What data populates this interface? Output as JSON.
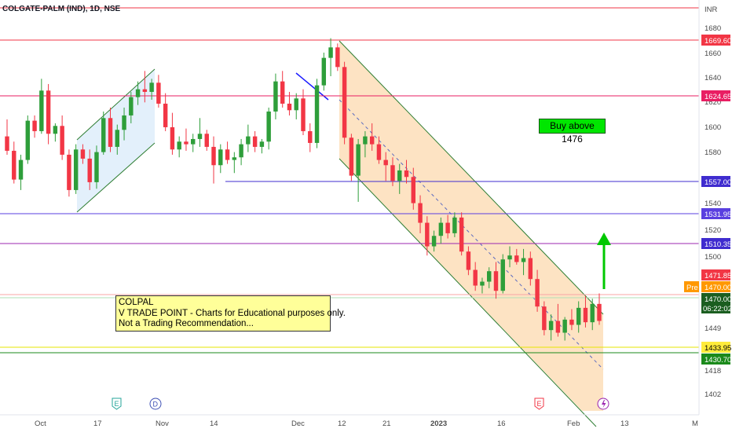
{
  "header": {
    "symbol_line": "COLGATE-PALM (IND), 1D, NSE",
    "currency": "INR"
  },
  "annotations": {
    "note_lines": [
      "COLPAL",
      "V TRADE POINT - Charts for Educational purposes only.",
      "Not a Trading Recommendation..."
    ],
    "buy_label": "Buy above 1476",
    "pre_tag": "Pre",
    "countdown": "06:22:02",
    "event_markers": [
      "E",
      "D",
      "E"
    ]
  },
  "colors": {
    "up": "#26a69a",
    "down": "#f23645",
    "up_candle": "#2e9e3a",
    "down_candle": "#f23645",
    "channel_fill": "#fde3c3",
    "ascending_channel_fill": "#e3f0fb",
    "buy_box": "#00e600"
  },
  "chart_data": {
    "type": "candlestick",
    "title": "COLGATE-PALM (IND), 1D, NSE",
    "currency": "INR",
    "x_axis_ticks": [
      "Oct",
      "17",
      "Nov",
      "14",
      "Dec",
      "12",
      "21",
      "2023",
      "16",
      "Feb",
      "13",
      "M"
    ],
    "y_axis_ticks": [
      1680,
      1660,
      1640,
      1620,
      1600,
      1580,
      1540,
      1520,
      1500,
      1449,
      1418,
      1402
    ],
    "ylim": [
      1396,
      1690
    ],
    "grid": false,
    "horizontal_levels": [
      {
        "label": "1669.60",
        "color": "#f23645"
      },
      {
        "label": "1624.65",
        "color": "#e91e63"
      },
      {
        "label": "1557.00",
        "color": "#3f2ccf"
      },
      {
        "label": "1531.95",
        "color": "#5a3fe0"
      },
      {
        "label": "1510.35",
        "color": "#3f2ccf"
      },
      {
        "label": "1471.85",
        "color": "#f23645"
      },
      {
        "label": "1470.00",
        "color": "#ff9800"
      },
      {
        "label": "1470.00",
        "color": "#1b5e20"
      },
      {
        "label": "1433.95",
        "color": "#ffeb3b"
      },
      {
        "label": "1430.70",
        "color": "#1b8a1b"
      }
    ],
    "candles": [
      [
        1596,
        1609,
        1582,
        1585
      ],
      [
        1585,
        1592,
        1560,
        1563
      ],
      [
        1563,
        1582,
        1555,
        1578
      ],
      [
        1578,
        1612,
        1575,
        1608
      ],
      [
        1608,
        1612,
        1595,
        1600
      ],
      [
        1600,
        1640,
        1598,
        1631
      ],
      [
        1631,
        1636,
        1590,
        1598
      ],
      [
        1598,
        1606,
        1592,
        1604
      ],
      [
        1604,
        1612,
        1578,
        1582
      ],
      [
        1582,
        1586,
        1550,
        1555
      ],
      [
        1555,
        1590,
        1552,
        1586
      ],
      [
        1586,
        1590,
        1575,
        1579
      ],
      [
        1579,
        1586,
        1555,
        1561
      ],
      [
        1561,
        1589,
        1556,
        1584
      ],
      [
        1584,
        1615,
        1582,
        1610
      ],
      [
        1610,
        1618,
        1584,
        1588
      ],
      [
        1588,
        1605,
        1582,
        1601
      ],
      [
        1601,
        1618,
        1593,
        1612
      ],
      [
        1612,
        1630,
        1606,
        1626
      ],
      [
        1626,
        1638,
        1620,
        1632
      ],
      [
        1632,
        1646,
        1622,
        1630
      ],
      [
        1630,
        1640,
        1624,
        1637
      ],
      [
        1637,
        1643,
        1618,
        1621
      ],
      [
        1621,
        1629,
        1600,
        1603
      ],
      [
        1603,
        1614,
        1582,
        1586
      ],
      [
        1586,
        1596,
        1580,
        1592
      ],
      [
        1592,
        1602,
        1585,
        1590
      ],
      [
        1590,
        1598,
        1584,
        1594
      ],
      [
        1594,
        1610,
        1588,
        1598
      ],
      [
        1598,
        1601,
        1585,
        1588
      ],
      [
        1588,
        1596,
        1560,
        1574
      ],
      [
        1574,
        1590,
        1568,
        1586
      ],
      [
        1586,
        1592,
        1575,
        1578
      ],
      [
        1578,
        1584,
        1568,
        1580
      ],
      [
        1580,
        1594,
        1574,
        1590
      ],
      [
        1590,
        1605,
        1584,
        1596
      ],
      [
        1596,
        1600,
        1584,
        1588
      ],
      [
        1588,
        1594,
        1583,
        1592
      ],
      [
        1592,
        1618,
        1586,
        1615
      ],
      [
        1615,
        1644,
        1609,
        1638
      ],
      [
        1638,
        1646,
        1618,
        1621
      ],
      [
        1621,
        1630,
        1612,
        1616
      ],
      [
        1616,
        1629,
        1609,
        1625
      ],
      [
        1625,
        1632,
        1597,
        1600
      ],
      [
        1600,
        1606,
        1584,
        1591
      ],
      [
        1591,
        1640,
        1587,
        1635
      ],
      [
        1635,
        1660,
        1631,
        1656
      ],
      [
        1656,
        1671,
        1642,
        1664
      ],
      [
        1664,
        1667,
        1646,
        1649
      ],
      [
        1649,
        1653,
        1590,
        1595
      ],
      [
        1595,
        1598,
        1562,
        1566
      ],
      [
        1566,
        1594,
        1546,
        1590
      ],
      [
        1590,
        1600,
        1580,
        1596
      ],
      [
        1596,
        1606,
        1585,
        1590
      ],
      [
        1590,
        1596,
        1575,
        1578
      ],
      [
        1578,
        1584,
        1562,
        1574
      ],
      [
        1574,
        1580,
        1558,
        1562
      ],
      [
        1562,
        1575,
        1552,
        1570
      ],
      [
        1570,
        1578,
        1560,
        1565
      ],
      [
        1565,
        1572,
        1540,
        1545
      ],
      [
        1545,
        1551,
        1522,
        1530
      ],
      [
        1530,
        1535,
        1505,
        1512
      ],
      [
        1512,
        1524,
        1508,
        1520
      ],
      [
        1520,
        1534,
        1514,
        1530
      ],
      [
        1530,
        1536,
        1518,
        1522
      ],
      [
        1522,
        1538,
        1519,
        1534
      ],
      [
        1534,
        1538,
        1505,
        1508
      ],
      [
        1508,
        1512,
        1490,
        1494
      ],
      [
        1494,
        1500,
        1478,
        1482
      ],
      [
        1482,
        1488,
        1476,
        1485
      ],
      [
        1485,
        1496,
        1480,
        1493
      ],
      [
        1493,
        1500,
        1472,
        1478
      ],
      [
        1478,
        1506,
        1476,
        1502
      ],
      [
        1502,
        1512,
        1496,
        1505
      ],
      [
        1505,
        1510,
        1498,
        1500
      ],
      [
        1500,
        1510,
        1490,
        1503
      ],
      [
        1503,
        1508,
        1482,
        1487
      ],
      [
        1487,
        1494,
        1462,
        1466
      ],
      [
        1466,
        1470,
        1444,
        1448
      ],
      [
        1448,
        1460,
        1440,
        1455
      ],
      [
        1455,
        1468,
        1443,
        1446
      ],
      [
        1446,
        1458,
        1440,
        1456
      ],
      [
        1456,
        1464,
        1448,
        1452
      ],
      [
        1452,
        1470,
        1446,
        1465
      ],
      [
        1465,
        1474,
        1450,
        1454
      ],
      [
        1454,
        1472,
        1448,
        1468
      ],
      [
        1468,
        1476,
        1452,
        1455
      ]
    ]
  }
}
